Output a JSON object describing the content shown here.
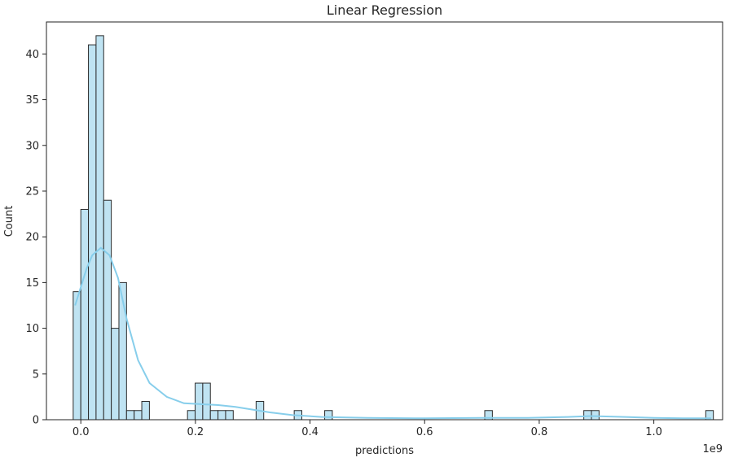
{
  "chart_data": {
    "type": "bar",
    "title": "Linear Regression",
    "xlabel": "predictions",
    "ylabel": "Count",
    "x_offset_label": "1e9",
    "xlim": [
      -0.06,
      1.12
    ],
    "ylim": [
      0,
      43.5
    ],
    "xticks": [
      0.0,
      0.2,
      0.4,
      0.6,
      0.8,
      1.0
    ],
    "xtick_labels": [
      "0.0",
      "0.2",
      "0.4",
      "0.6",
      "0.8",
      "1.0"
    ],
    "yticks": [
      0,
      5,
      10,
      15,
      20,
      25,
      30,
      35,
      40
    ],
    "ytick_labels": [
      "0",
      "5",
      "10",
      "15",
      "20",
      "25",
      "30",
      "35",
      "40"
    ],
    "grid": false,
    "bar_color": "#bfe3f2",
    "edge_color": "#2b2b2b",
    "kde_color": "#87ceeb",
    "bin_width": 0.0133,
    "bins": [
      {
        "x": -0.0133,
        "count": 14
      },
      {
        "x": 0.0,
        "count": 23
      },
      {
        "x": 0.0133,
        "count": 41
      },
      {
        "x": 0.0266,
        "count": 42
      },
      {
        "x": 0.0399,
        "count": 24
      },
      {
        "x": 0.0532,
        "count": 10
      },
      {
        "x": 0.0665,
        "count": 15
      },
      {
        "x": 0.0798,
        "count": 1
      },
      {
        "x": 0.0931,
        "count": 1
      },
      {
        "x": 0.1064,
        "count": 2
      },
      {
        "x": 0.1862,
        "count": 1
      },
      {
        "x": 0.1995,
        "count": 4
      },
      {
        "x": 0.2128,
        "count": 4
      },
      {
        "x": 0.2261,
        "count": 1
      },
      {
        "x": 0.2394,
        "count": 1
      },
      {
        "x": 0.2527,
        "count": 1
      },
      {
        "x": 0.3059,
        "count": 2
      },
      {
        "x": 0.3724,
        "count": 1
      },
      {
        "x": 0.4256,
        "count": 1
      },
      {
        "x": 0.7049,
        "count": 1
      },
      {
        "x": 0.8778,
        "count": 1
      },
      {
        "x": 0.8911,
        "count": 1
      },
      {
        "x": 1.0906,
        "count": 1
      }
    ],
    "kde": [
      [
        -0.01,
        12.5
      ],
      [
        0.0,
        14.5
      ],
      [
        0.01,
        16.5
      ],
      [
        0.02,
        18.0
      ],
      [
        0.035,
        18.8
      ],
      [
        0.05,
        18.0
      ],
      [
        0.065,
        15.5
      ],
      [
        0.08,
        11.0
      ],
      [
        0.1,
        6.5
      ],
      [
        0.12,
        4.0
      ],
      [
        0.15,
        2.5
      ],
      [
        0.18,
        1.8
      ],
      [
        0.21,
        1.7
      ],
      [
        0.24,
        1.6
      ],
      [
        0.27,
        1.4
      ],
      [
        0.3,
        1.1
      ],
      [
        0.33,
        0.8
      ],
      [
        0.37,
        0.5
      ],
      [
        0.42,
        0.3
      ],
      [
        0.5,
        0.2
      ],
      [
        0.6,
        0.15
      ],
      [
        0.7,
        0.2
      ],
      [
        0.78,
        0.2
      ],
      [
        0.85,
        0.3
      ],
      [
        0.89,
        0.4
      ],
      [
        0.95,
        0.3
      ],
      [
        1.0,
        0.2
      ],
      [
        1.05,
        0.15
      ],
      [
        1.1,
        0.15
      ]
    ]
  }
}
